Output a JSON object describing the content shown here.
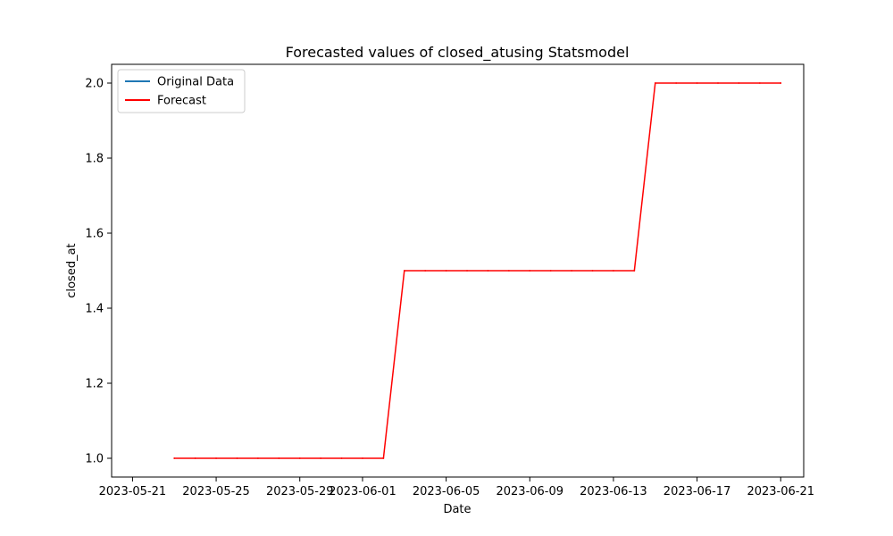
{
  "chart_data": {
    "type": "line",
    "title": "Forecasted values of closed_atusing Statsmodel",
    "xlabel": "Date",
    "ylabel": "closed_at",
    "x_ticks": [
      "2023-05-21",
      "2023-05-25",
      "2023-05-29",
      "2023-06-01",
      "2023-06-05",
      "2023-06-09",
      "2023-06-13",
      "2023-06-17",
      "2023-06-21"
    ],
    "y_ticks": [
      "1.0",
      "1.2",
      "1.4",
      "1.6",
      "1.8",
      "2.0"
    ],
    "xlim": [
      "2023-05-20",
      "2023-06-22"
    ],
    "ylim": [
      0.95,
      2.05
    ],
    "grid": false,
    "legend_position": "top-left",
    "series": [
      {
        "name": "Original Data",
        "color": "#1f77b4",
        "points": []
      },
      {
        "name": "Forecast",
        "color": "#ff0000",
        "points": [
          {
            "x": "2023-05-23",
            "y": 1.0
          },
          {
            "x": "2023-05-24",
            "y": 1.0
          },
          {
            "x": "2023-05-25",
            "y": 1.0
          },
          {
            "x": "2023-05-26",
            "y": 1.0
          },
          {
            "x": "2023-05-27",
            "y": 1.0
          },
          {
            "x": "2023-05-28",
            "y": 1.0
          },
          {
            "x": "2023-05-29",
            "y": 1.0
          },
          {
            "x": "2023-05-30",
            "y": 1.0
          },
          {
            "x": "2023-05-31",
            "y": 1.0
          },
          {
            "x": "2023-06-01",
            "y": 1.0
          },
          {
            "x": "2023-06-02",
            "y": 1.0
          },
          {
            "x": "2023-06-03",
            "y": 1.5
          },
          {
            "x": "2023-06-04",
            "y": 1.5
          },
          {
            "x": "2023-06-05",
            "y": 1.5
          },
          {
            "x": "2023-06-06",
            "y": 1.5
          },
          {
            "x": "2023-06-07",
            "y": 1.5
          },
          {
            "x": "2023-06-08",
            "y": 1.5
          },
          {
            "x": "2023-06-09",
            "y": 1.5
          },
          {
            "x": "2023-06-10",
            "y": 1.5
          },
          {
            "x": "2023-06-11",
            "y": 1.5
          },
          {
            "x": "2023-06-12",
            "y": 1.5
          },
          {
            "x": "2023-06-13",
            "y": 1.5
          },
          {
            "x": "2023-06-14",
            "y": 1.5
          },
          {
            "x": "2023-06-15",
            "y": 2.0
          },
          {
            "x": "2023-06-16",
            "y": 2.0
          },
          {
            "x": "2023-06-17",
            "y": 2.0
          },
          {
            "x": "2023-06-18",
            "y": 2.0
          },
          {
            "x": "2023-06-19",
            "y": 2.0
          },
          {
            "x": "2023-06-20",
            "y": 2.0
          },
          {
            "x": "2023-06-21",
            "y": 2.0
          }
        ]
      }
    ]
  }
}
